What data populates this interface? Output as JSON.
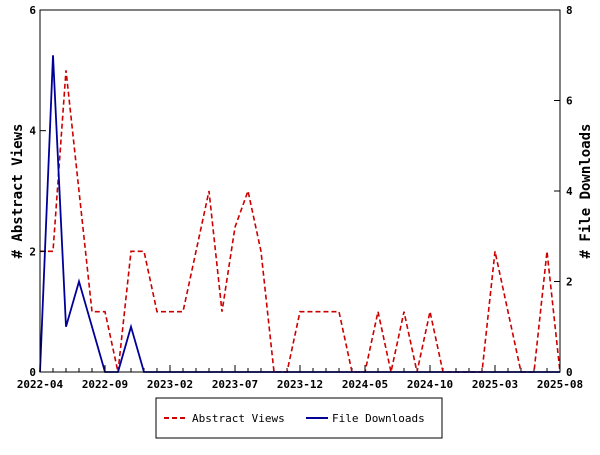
{
  "chart_data": {
    "type": "line",
    "ylabel_left": "# Abstract Views",
    "ylabel_right": "# File Downloads",
    "x_tick_labels": [
      "2022-04",
      "2022-09",
      "2023-02",
      "2023-07",
      "2023-12",
      "2024-05",
      "2024-10",
      "2025-03",
      "2025-08"
    ],
    "ylim_left": [
      0,
      6
    ],
    "ylim_right": [
      0,
      8
    ],
    "yticks_left": [
      "0",
      "2",
      "4",
      "6"
    ],
    "yticks_right": [
      "0",
      "2",
      "4",
      "6",
      "8"
    ],
    "legend_position": "bottom",
    "grid": false,
    "series": [
      {
        "name": "Abstract Views",
        "axis": "left",
        "color": "#cc0000",
        "dash": "dashed",
        "points": [
          [
            "2022-04",
            2
          ],
          [
            "2022-05",
            2
          ],
          [
            "2022-06",
            5
          ],
          [
            "2022-07",
            3
          ],
          [
            "2022-08",
            1
          ],
          [
            "2022-09",
            1
          ],
          [
            "2022-10",
            0
          ],
          [
            "2022-11",
            2
          ],
          [
            "2022-12",
            2
          ],
          [
            "2023-01",
            1
          ],
          [
            "2023-02",
            1
          ],
          [
            "2023-03",
            1
          ],
          [
            "2023-04",
            2
          ],
          [
            "2023-05",
            3
          ],
          [
            "2023-06",
            1
          ],
          [
            "2023-07",
            2.4
          ],
          [
            "2023-08",
            3
          ],
          [
            "2023-09",
            2
          ],
          [
            "2023-10",
            0
          ],
          [
            "2023-11",
            0
          ],
          [
            "2023-12",
            1
          ],
          [
            "2024-01",
            1
          ],
          [
            "2024-02",
            1
          ],
          [
            "2024-03",
            1
          ],
          [
            "2024-04",
            0
          ],
          [
            "2024-05",
            0
          ],
          [
            "2024-06",
            1
          ],
          [
            "2024-07",
            0
          ],
          [
            "2024-08",
            1
          ],
          [
            "2024-09",
            0
          ],
          [
            "2024-10",
            1
          ],
          [
            "2024-11",
            0
          ],
          [
            "2024-12",
            0
          ],
          [
            "2025-01",
            0
          ],
          [
            "2025-02",
            0
          ],
          [
            "2025-03",
            2
          ],
          [
            "2025-04",
            1
          ],
          [
            "2025-05",
            0
          ],
          [
            "2025-06",
            0
          ],
          [
            "2025-07",
            2
          ],
          [
            "2025-08",
            0
          ]
        ]
      },
      {
        "name": "File Downloads",
        "axis": "right",
        "color": "#000099",
        "dash": "solid",
        "points": [
          [
            "2022-04",
            0
          ],
          [
            "2022-05",
            7
          ],
          [
            "2022-06",
            1
          ],
          [
            "2022-07",
            2
          ],
          [
            "2022-08",
            1
          ],
          [
            "2022-09",
            0
          ],
          [
            "2022-10",
            0
          ],
          [
            "2022-11",
            1
          ],
          [
            "2022-12",
            0
          ],
          [
            "2023-01",
            0
          ],
          [
            "2023-02",
            0
          ],
          [
            "2023-03",
            0
          ],
          [
            "2023-04",
            0
          ],
          [
            "2023-05",
            0
          ],
          [
            "2023-06",
            0
          ],
          [
            "2023-07",
            0
          ],
          [
            "2023-08",
            0
          ],
          [
            "2023-09",
            0
          ],
          [
            "2023-10",
            0
          ],
          [
            "2023-11",
            0
          ],
          [
            "2023-12",
            0
          ],
          [
            "2024-01",
            0
          ],
          [
            "2024-02",
            0
          ],
          [
            "2024-03",
            0
          ],
          [
            "2024-04",
            0
          ],
          [
            "2024-05",
            0
          ],
          [
            "2024-06",
            0
          ],
          [
            "2024-07",
            0
          ],
          [
            "2024-08",
            0
          ],
          [
            "2024-09",
            0
          ],
          [
            "2024-10",
            0
          ],
          [
            "2024-11",
            0
          ],
          [
            "2024-12",
            0
          ],
          [
            "2025-01",
            0
          ],
          [
            "2025-02",
            0
          ],
          [
            "2025-03",
            0
          ],
          [
            "2025-04",
            0
          ],
          [
            "2025-05",
            0
          ],
          [
            "2025-06",
            0
          ],
          [
            "2025-07",
            0
          ],
          [
            "2025-08",
            0
          ]
        ]
      }
    ]
  }
}
